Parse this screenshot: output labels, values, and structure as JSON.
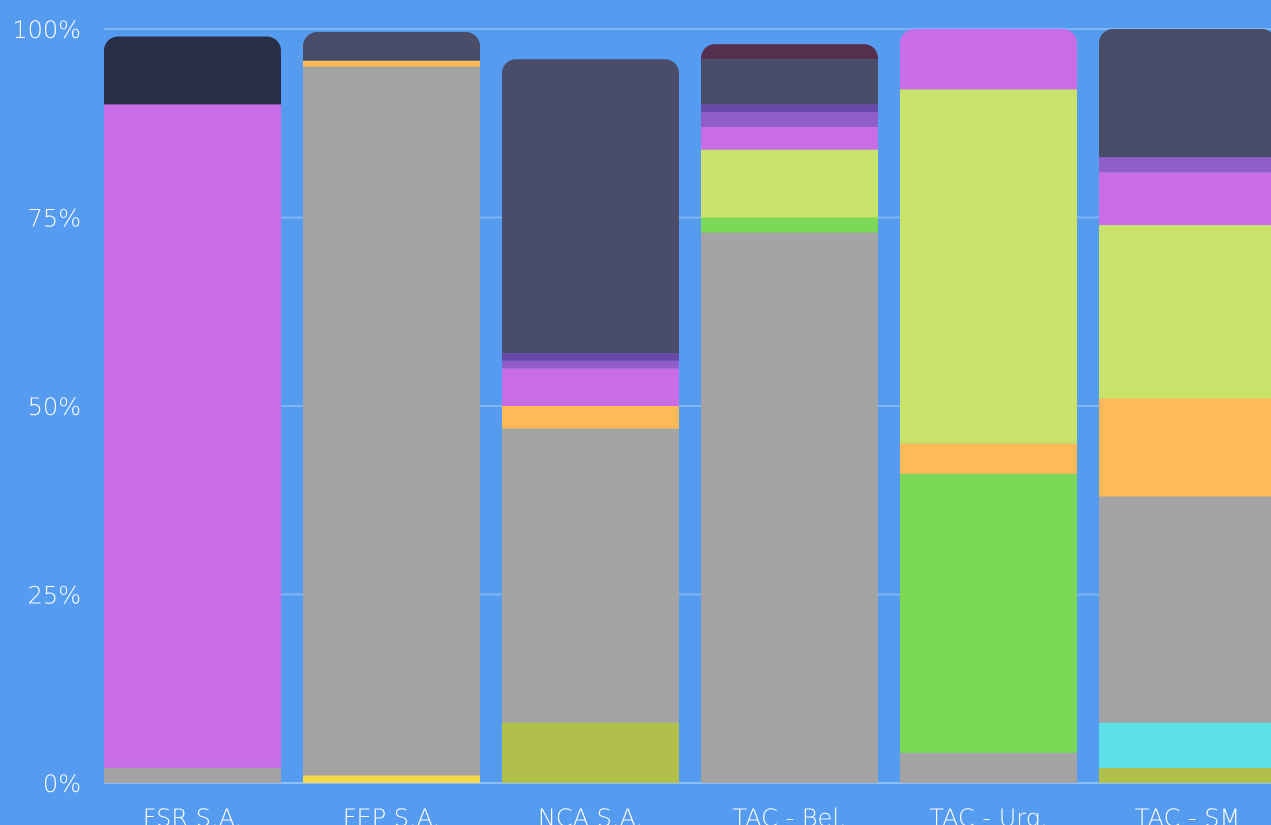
{
  "chart_data": {
    "type": "bar",
    "stacked": true,
    "normalized": true,
    "categories": [
      "FSR S.A.",
      "FEP S.A.",
      "NCA S.A.",
      "TAC - Bel.",
      "TAC - Urg.",
      "TAC - SM"
    ],
    "y_ticks": [
      "0%",
      "25%",
      "50%",
      "75%",
      "100%"
    ],
    "ylim": [
      0,
      100
    ],
    "grid": true,
    "legend": "none",
    "series": [
      {
        "color": "#b0c04b",
        "values": [
          0,
          0,
          8,
          0,
          0,
          2
        ]
      },
      {
        "color": "#f2d84a",
        "values": [
          0,
          1,
          0,
          0,
          0,
          0
        ]
      },
      {
        "color": "#5ce0e6",
        "values": [
          0,
          0,
          0,
          0,
          0,
          6
        ]
      },
      {
        "color": "#a4a4a4",
        "values": [
          2,
          94,
          39,
          73,
          4,
          30
        ]
      },
      {
        "color": "#7cd957",
        "values": [
          0,
          0,
          0,
          2,
          37,
          0
        ]
      },
      {
        "color": "#ffb957",
        "values": [
          0,
          0.8,
          3,
          0,
          4,
          13
        ]
      },
      {
        "color": "#c8e26a",
        "values": [
          0,
          0,
          0,
          9,
          47,
          23
        ]
      },
      {
        "color": "#c86de6",
        "values": [
          88,
          0,
          5,
          3,
          8,
          7
        ]
      },
      {
        "color": "#8f5ec9",
        "values": [
          0,
          0,
          1,
          2,
          0,
          2
        ]
      },
      {
        "color": "#6a48a8",
        "values": [
          0,
          0,
          1,
          1,
          0,
          0
        ]
      },
      {
        "color": "#4a4d6a",
        "values": [
          0,
          3.8,
          39,
          6,
          0,
          17
        ]
      },
      {
        "color": "#562f4f",
        "values": [
          0,
          0,
          0,
          2,
          0,
          0
        ]
      },
      {
        "color": "#292e49",
        "values": [
          9,
          0,
          0,
          0,
          0,
          0
        ]
      }
    ]
  }
}
